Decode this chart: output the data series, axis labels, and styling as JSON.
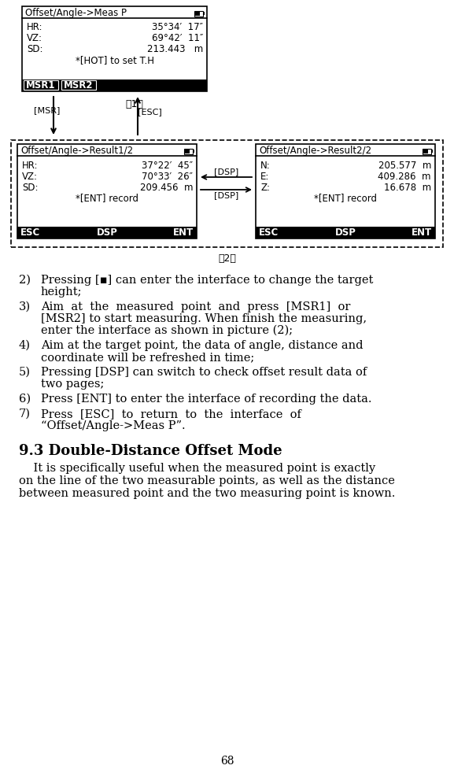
{
  "page_num": "68",
  "bg_color": "#ffffff",
  "box1": {
    "title": "Offset/Angle->Meas P",
    "lines": [
      [
        "HR:",
        "35°34′  17″"
      ],
      [
        "VZ:",
        "69°42′  11″"
      ],
      [
        "SD:",
        "213.443   m"
      ],
      [
        "",
        "*[HOT] to set T.H"
      ]
    ],
    "buttons": [
      "MSR1",
      "MSR2"
    ]
  },
  "box2": {
    "title": "Offset/Angle->Result1/2",
    "lines": [
      [
        "HR:",
        "37°22′  45″"
      ],
      [
        "VZ:",
        "70°33′  26″"
      ],
      [
        "SD:",
        "209.456  m"
      ],
      [
        "",
        "*[ENT] record"
      ]
    ],
    "buttons": [
      "ESC",
      "DSP",
      "ENT"
    ]
  },
  "box3": {
    "title": "Offset/Angle->Result2/2",
    "lines": [
      [
        "N:",
        "205.577  m"
      ],
      [
        "E:",
        "409.286  m"
      ],
      [
        "Z:",
        "16.678  m"
      ],
      [
        "",
        "*[ENT] record"
      ]
    ],
    "buttons": [
      "ESC",
      "DSP",
      "ENT"
    ]
  },
  "label1": "（1）",
  "label2": "（2）",
  "list_items": [
    [
      2,
      "Pressing [▪] can enter the interface to change the target\nheight;"
    ],
    [
      3,
      "Aim  at  the  measured  point  and  press  [MSR1]  or\n[MSR2] to start measuring. When finish the measuring,\nenter the interface as shown in picture (2);"
    ],
    [
      4,
      "Aim at the target point, the data of angle, distance and\ncoordinate will be refreshed in time;"
    ],
    [
      5,
      "Pressing [DSP] can switch to check offset result data of\ntwo pages;"
    ],
    [
      6,
      "Press [ENT] to enter the interface of recording the data."
    ],
    [
      7,
      "Press  [ESC]  to  return  to  the  interface  of\n“Offset/Angle->Meas P”."
    ]
  ],
  "section_title": "9.3 Double-Distance Offset Mode",
  "section_body": "    It is specifically useful when the measured point is exactly\non the line of the two measurable points, as well as the distance\nbetween measured point and the two measuring point is known."
}
